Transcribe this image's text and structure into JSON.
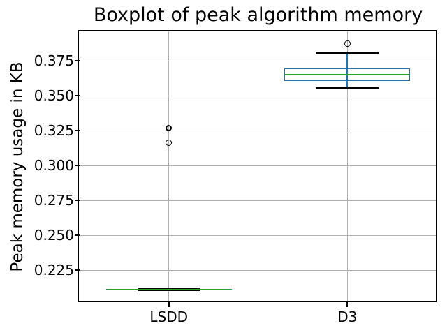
{
  "chart_data": {
    "type": "boxplot",
    "title": "Boxplot of peak algorithm memory",
    "ylabel": "Peak memory usage in KB",
    "xlabel": "",
    "categories": [
      "LSDD",
      "D3"
    ],
    "yticks": [
      0.375,
      0.35,
      0.325,
      0.3,
      0.275,
      0.25,
      0.225
    ],
    "ytick_labels": [
      "0.375",
      "0.350",
      "0.325",
      "0.300",
      "0.275",
      "0.250",
      "0.225"
    ],
    "ylim": [
      0.202,
      0.396
    ],
    "grid": true,
    "legend_position": "none",
    "boxes": [
      {
        "category": "LSDD",
        "whisker_low": 0.2105,
        "q1": 0.2105,
        "median": 0.211,
        "q3": 0.2115,
        "whisker_high": 0.2115,
        "outliers": [
          0.3165,
          0.327
        ]
      },
      {
        "category": "D3",
        "whisker_low": 0.3555,
        "q1": 0.3605,
        "median": 0.365,
        "q3": 0.3695,
        "whisker_high": 0.3805,
        "outliers": [
          0.3875
        ]
      }
    ],
    "colors": {
      "box": "#1f77b4",
      "whisker": "#1f77b4",
      "median": "#2ca02c",
      "cap": "#000000",
      "flier_edge": "#000000",
      "grid": "#b0b0b0",
      "spine": "#000000",
      "text": "#000000",
      "background": "#ffffff"
    }
  }
}
